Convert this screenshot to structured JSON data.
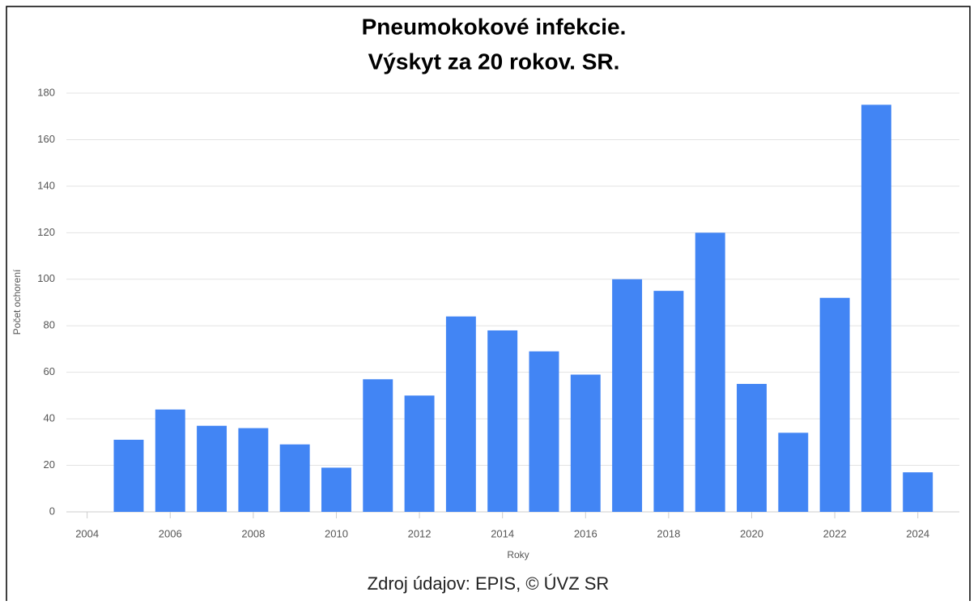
{
  "chart_data": {
    "type": "bar",
    "title": [
      "Pneumokokové infekcie.",
      "Výskyt za 20 rokov. SR."
    ],
    "x": [
      2005,
      2006,
      2007,
      2008,
      2009,
      2010,
      2011,
      2012,
      2013,
      2014,
      2015,
      2016,
      2017,
      2018,
      2019,
      2020,
      2021,
      2022,
      2023,
      2024
    ],
    "values": [
      31,
      44,
      37,
      36,
      29,
      19,
      57,
      50,
      84,
      78,
      69,
      59,
      100,
      95,
      120,
      55,
      34,
      92,
      175,
      17
    ],
    "color": "#4285f4",
    "xlim": [
      2003.5,
      2025
    ],
    "xticks": [
      2004,
      2006,
      2008,
      2010,
      2012,
      2014,
      2016,
      2018,
      2020,
      2022,
      2024
    ],
    "ylim": [
      0,
      180
    ],
    "yticks": [
      0,
      20,
      40,
      60,
      80,
      100,
      120,
      140,
      160,
      180
    ],
    "xlabel": "Roky",
    "ylabel": "Počet ochorení",
    "grid": true,
    "source": "Zdroj údajov: EPIS, © ÚVZ SR"
  }
}
